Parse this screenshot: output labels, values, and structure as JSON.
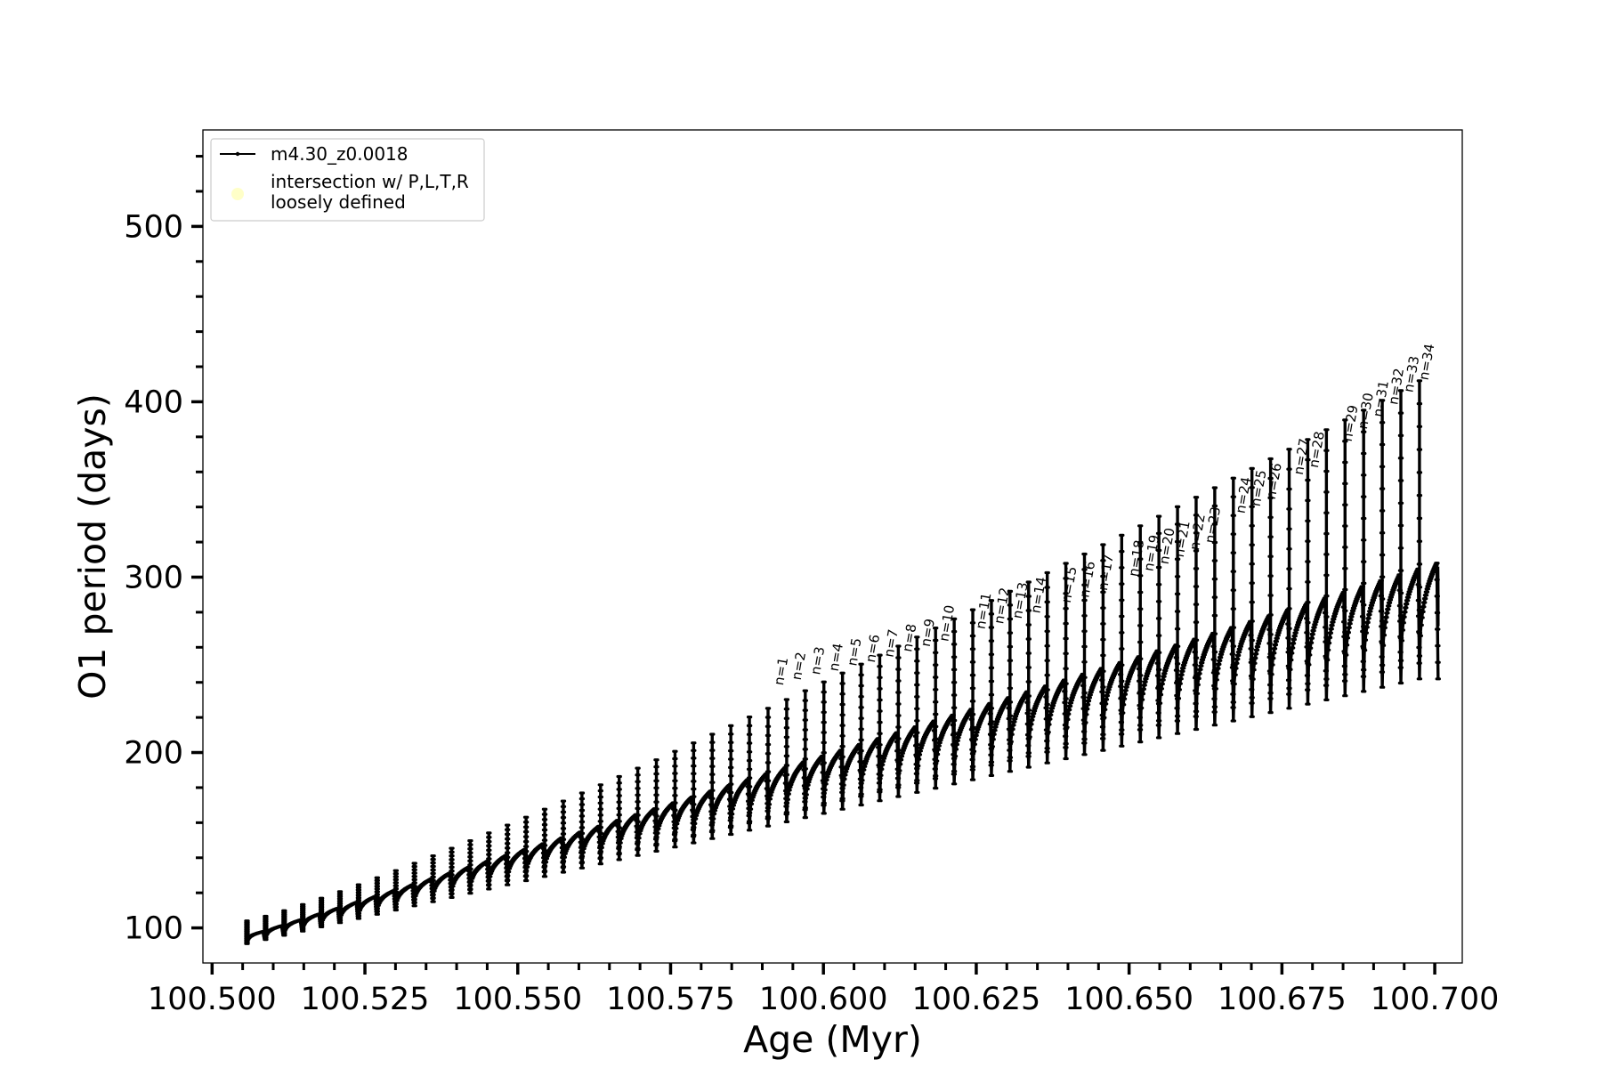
{
  "chart_data": {
    "type": "line",
    "xlabel": "Age (Myr)",
    "ylabel": "O1 period (days)",
    "xlim": [
      100.4985,
      100.7045
    ],
    "ylim": [
      80,
      555
    ],
    "x_ticks": [
      "100.500",
      "100.525",
      "100.550",
      "100.575",
      "100.600",
      "100.625",
      "100.650",
      "100.675",
      "100.700"
    ],
    "x_tick_values": [
      100.5,
      100.525,
      100.55,
      100.575,
      100.6,
      100.625,
      100.65,
      100.675,
      100.7
    ],
    "x_minor_step": 0.005,
    "y_ticks": [
      "100",
      "200",
      "300",
      "400",
      "500"
    ],
    "y_tick_values": [
      100,
      200,
      300,
      400,
      500
    ],
    "y_minor_step": 20,
    "legend": {
      "placement": "upper-left",
      "entries": [
        {
          "label": "m4.30_z0.0018",
          "marker": "line-with-dots",
          "color": "#000000"
        },
        {
          "label_line1": "intersection w/ P,L,T,R",
          "label_line2": "loosely defined",
          "marker": "circle",
          "color": "#ffffc8"
        }
      ]
    },
    "series": [
      {
        "name": "m4.30_z0.0018",
        "color": "#000000",
        "pulse_count": 64,
        "pulse_x_start": 100.5057,
        "pulse_x_end": 100.6975,
        "baseline_y_start": 98,
        "baseline_y_end": 308,
        "dip_y_start": 91,
        "dip_y_end": 242,
        "spike_y_start": 104,
        "spike_y_end": 412,
        "final_x": 100.7005,
        "final_y": 306
      }
    ],
    "annotations": [
      {
        "text": "n=1",
        "x": 100.5928,
        "y": 236
      },
      {
        "text": "n=2",
        "x": 100.5957,
        "y": 239
      },
      {
        "text": "n=3",
        "x": 100.5988,
        "y": 242
      },
      {
        "text": "n=4",
        "x": 100.6018,
        "y": 244
      },
      {
        "text": "n=5",
        "x": 100.6048,
        "y": 247
      },
      {
        "text": "n=6",
        "x": 100.6078,
        "y": 249
      },
      {
        "text": "n=7",
        "x": 100.6108,
        "y": 252
      },
      {
        "text": "n=8",
        "x": 100.6138,
        "y": 255
      },
      {
        "text": "n=9",
        "x": 100.6168,
        "y": 258
      },
      {
        "text": "n=10",
        "x": 100.6198,
        "y": 261
      },
      {
        "text": "n=11",
        "x": 100.6258,
        "y": 268
      },
      {
        "text": "n=12",
        "x": 100.6288,
        "y": 271
      },
      {
        "text": "n=13",
        "x": 100.6318,
        "y": 274
      },
      {
        "text": "n=14",
        "x": 100.6348,
        "y": 277
      },
      {
        "text": "n=15",
        "x": 100.6398,
        "y": 283
      },
      {
        "text": "n=16",
        "x": 100.6428,
        "y": 286
      },
      {
        "text": "n=17",
        "x": 100.6458,
        "y": 290
      },
      {
        "text": "n=18",
        "x": 100.6508,
        "y": 298
      },
      {
        "text": "n=19",
        "x": 100.6533,
        "y": 301
      },
      {
        "text": "n=20",
        "x": 100.6558,
        "y": 305
      },
      {
        "text": "n=21",
        "x": 100.6583,
        "y": 309
      },
      {
        "text": "n=22",
        "x": 100.6608,
        "y": 313
      },
      {
        "text": "n=23",
        "x": 100.6633,
        "y": 317
      },
      {
        "text": "n=24",
        "x": 100.6683,
        "y": 334
      },
      {
        "text": "n=25",
        "x": 100.6708,
        "y": 338
      },
      {
        "text": "n=26",
        "x": 100.6733,
        "y": 342
      },
      {
        "text": "n=27",
        "x": 100.6778,
        "y": 356
      },
      {
        "text": "n=28",
        "x": 100.6803,
        "y": 360
      },
      {
        "text": "n=29",
        "x": 100.6858,
        "y": 375
      },
      {
        "text": "n=30",
        "x": 100.6883,
        "y": 382
      },
      {
        "text": "n=31",
        "x": 100.6908,
        "y": 389
      },
      {
        "text": "n=32",
        "x": 100.6933,
        "y": 396
      },
      {
        "text": "n=33",
        "x": 100.6958,
        "y": 403
      },
      {
        "text": "n=34",
        "x": 100.6983,
        "y": 410
      }
    ]
  }
}
